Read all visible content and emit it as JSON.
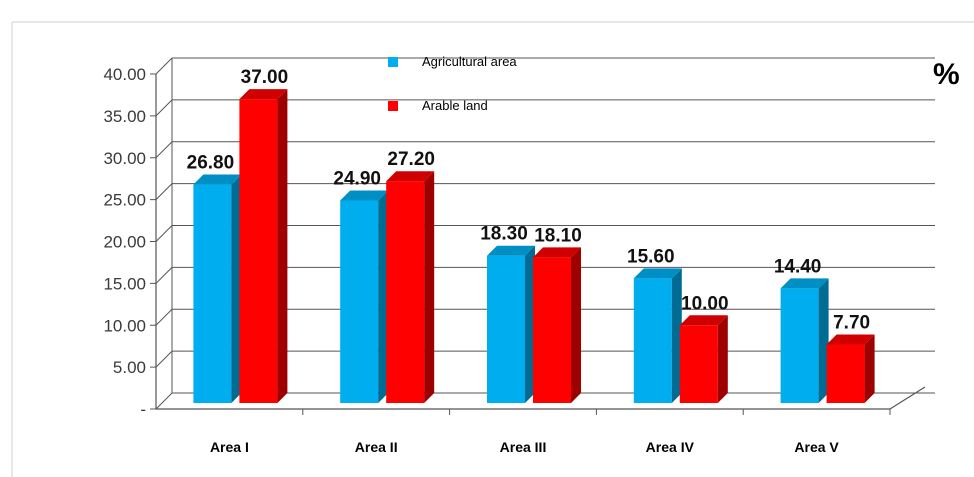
{
  "chart_data": {
    "type": "bar",
    "title": "",
    "unit_label": "%",
    "categories": [
      "Area I",
      "Area II",
      "Area  III",
      "Area IV",
      "Area V"
    ],
    "series": [
      {
        "name": "Agricultural area",
        "color": "#00AEEF",
        "values": [
          26.8,
          24.9,
          18.3,
          15.6,
          14.4
        ],
        "labels": [
          "26.80",
          "24.90",
          "18.30",
          "15.60",
          "14.40"
        ]
      },
      {
        "name": "Arable land",
        "color": "#FF0000",
        "values": [
          37.0,
          27.2,
          18.1,
          10.0,
          7.7
        ],
        "labels": [
          "37.00",
          "27.20",
          "18.10",
          "10.00",
          "7.70"
        ]
      }
    ],
    "y_ticks": [
      "-",
      "5.00",
      "10.00",
      "15.00",
      "20.00",
      "25.00",
      "30.00",
      "35.00",
      "40.00"
    ],
    "ylim": [
      0,
      40
    ],
    "grid": true,
    "legend_position": "top"
  }
}
